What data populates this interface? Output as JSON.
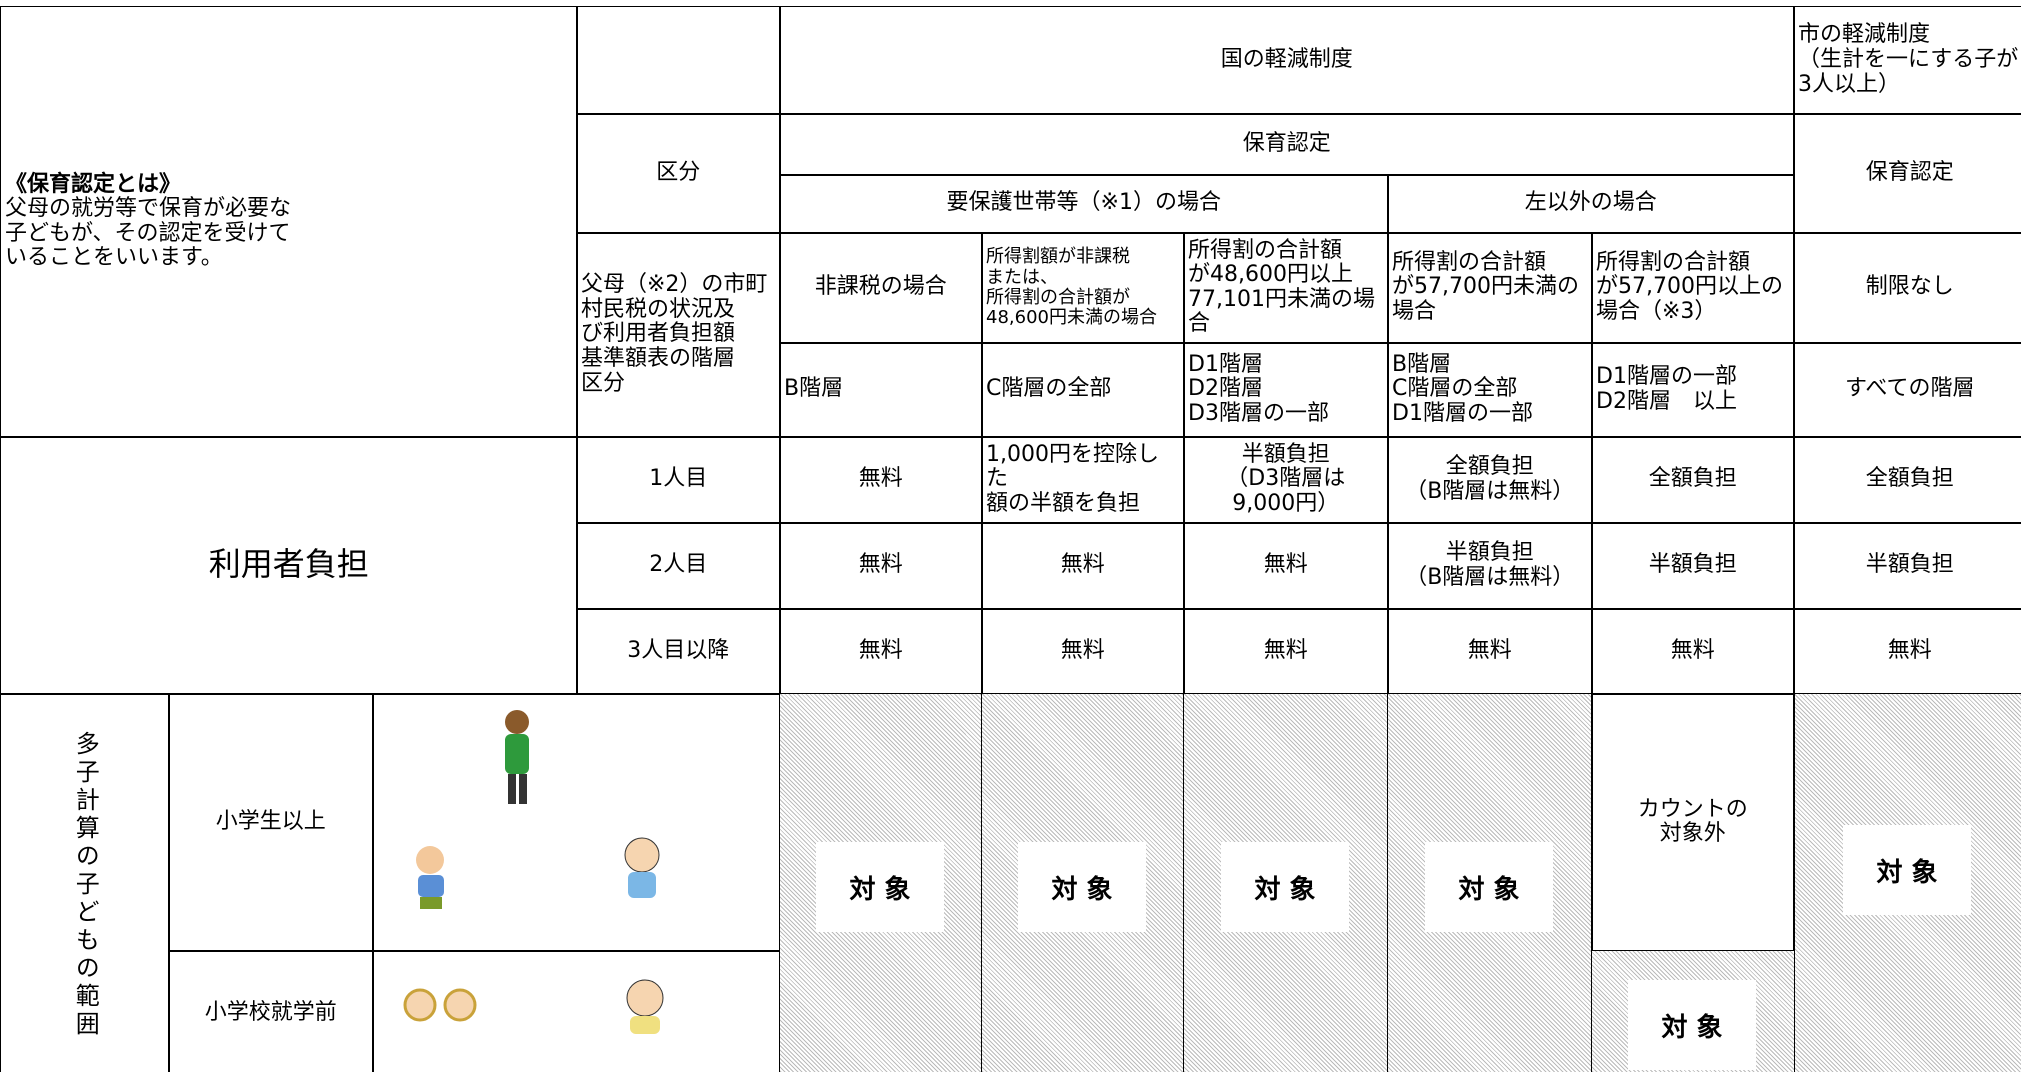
{
  "intro": {
    "title": "《保育認定とは》",
    "lines": [
      "父母の就労等で保育が必要な",
      "子どもが、その認定を受けて",
      "いることをいいます。"
    ]
  },
  "header": {
    "kubun": "区分",
    "national": "国の軽減制度",
    "city": [
      "市の軽減制度",
      "（生計を一にする子が",
      "3人以上）"
    ],
    "national_cert": "保育認定",
    "city_cert": "保育認定",
    "protected": "要保護世帯等（※1）の場合",
    "other": "左以外の場合",
    "basis": [
      "父母（※2）の市町",
      "村民税の状況及",
      "び利用者負担額",
      "基準額表の階層",
      "区分"
    ]
  },
  "conditions": [
    [
      "非課税の場合"
    ],
    [
      "所得割額が非課税",
      "または、",
      "所得割の合計額が",
      "48,600円未満の場合"
    ],
    [
      "所得割の合計額",
      "が48,600円以上",
      "77,101円未満の場",
      "合"
    ],
    [
      "所得割の合計額",
      "が57,700円未満の",
      "場合"
    ],
    [
      "所得割の合計額",
      "が57,700円以上の",
      "場合（※3）"
    ],
    [
      "制限なし"
    ]
  ],
  "tiers": [
    [
      "B階層"
    ],
    [
      "C階層の全部"
    ],
    [
      "D1階層",
      "D2階層",
      "D3階層の一部"
    ],
    [
      "B階層",
      "C階層の全部",
      "D1階層の一部"
    ],
    [
      "D1階層の一部",
      "D2階層　以上"
    ],
    [
      "すべての階層"
    ]
  ],
  "burden": {
    "label": "利用者負担",
    "rows": [
      {
        "label": "1人目",
        "cells": [
          [
            "無料"
          ],
          [
            "1,000円を控除した",
            "額の半額を負担"
          ],
          [
            "半額負担",
            "（D3階層は",
            "9,000円）"
          ],
          [
            "全額負担",
            "（B階層は無料）"
          ],
          [
            "全額負担"
          ],
          [
            "全額負担"
          ]
        ]
      },
      {
        "label": "2人目",
        "cells": [
          [
            "無料"
          ],
          [
            "無料"
          ],
          [
            "無料"
          ],
          [
            "半額負担",
            "（B階層は無料）"
          ],
          [
            "半額負担"
          ],
          [
            "半額負担"
          ]
        ]
      },
      {
        "label": "3人目以降",
        "cells": [
          [
            "無料"
          ],
          [
            "無料"
          ],
          [
            "無料"
          ],
          [
            "無料"
          ],
          [
            "無料"
          ],
          [
            "無料"
          ]
        ]
      }
    ]
  },
  "scope": {
    "label": "多子計算の子どもの範囲",
    "rows": [
      "小学生以上",
      "小学校就学前"
    ],
    "target": "対 象",
    "excluded": [
      "カウントの",
      "対象外"
    ]
  }
}
